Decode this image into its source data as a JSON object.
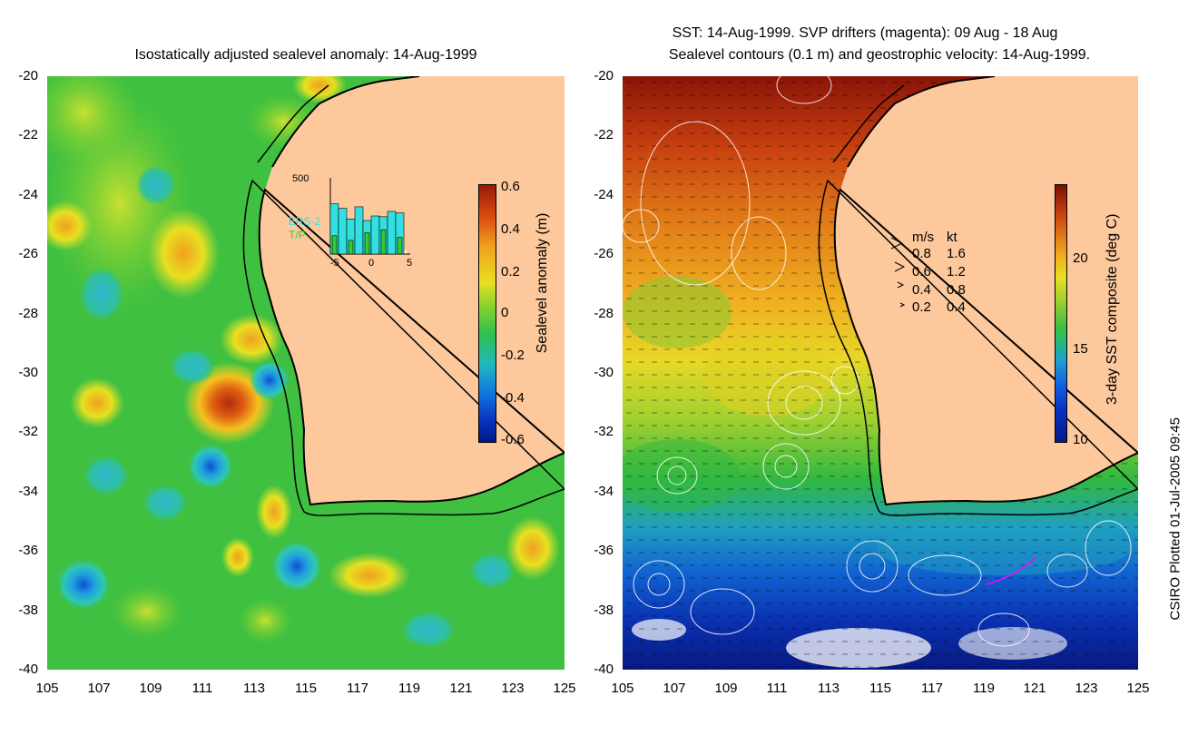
{
  "left_panel": {
    "title": "Isostatically adjusted sealevel anomaly: 14-Aug-1999",
    "lat_ticks": [
      "-20",
      "-22",
      "-24",
      "-26",
      "-28",
      "-30",
      "-32",
      "-34",
      "-36",
      "-38",
      "-40"
    ],
    "lon_ticks": [
      "105",
      "107",
      "109",
      "111",
      "113",
      "115",
      "117",
      "119",
      "121",
      "123",
      "125"
    ],
    "colorbar": {
      "label": "Sealevel anomaly (m)",
      "ticks": [
        "0.6",
        "0.4",
        "0.2",
        "0",
        "-0.2",
        "-0.4",
        "-0.6"
      ],
      "range": [
        -0.6,
        0.6
      ]
    },
    "histogram": {
      "ymax_label": "500",
      "x_ticks": [
        "-5",
        "0",
        "5"
      ],
      "series": [
        {
          "name": "ERS-2",
          "color": "#33e0e0",
          "values": [
            330,
            300,
            230,
            310,
            220,
            250,
            245,
            280,
            270
          ]
        },
        {
          "name": "T/P",
          "color": "#33cc33",
          "values": [
            120,
            0,
            90,
            0,
            140,
            0,
            160,
            0,
            110
          ]
        }
      ]
    }
  },
  "right_panel": {
    "title_line1": "SST: 14-Aug-1999. SVP drifters (magenta): 09 Aug - 18 Aug",
    "title_line2": "Sealevel contours (0.1 m) and geostrophic velocity: 14-Aug-1999.",
    "lat_ticks": [
      "-20",
      "-22",
      "-24",
      "-26",
      "-28",
      "-30",
      "-32",
      "-34",
      "-36",
      "-38",
      "-40"
    ],
    "lon_ticks": [
      "105",
      "107",
      "109",
      "111",
      "113",
      "115",
      "117",
      "119",
      "121",
      "123",
      "125"
    ],
    "colorbar": {
      "label": "3-day SST composite (deg C)",
      "ticks": [
        "20",
        "15",
        "10"
      ],
      "range": [
        10,
        24
      ]
    },
    "velocity_legend": {
      "header_ms": "m/s",
      "header_kt": "kt",
      "rows": [
        {
          "ms": "0.8",
          "kt": "1.6"
        },
        {
          "ms": "0.6",
          "kt": "1.2"
        },
        {
          "ms": "0.4",
          "kt": "0.8"
        },
        {
          "ms": "0.2",
          "kt": "0.4"
        }
      ]
    }
  },
  "credit": "CSIRO Plotted 01-Jul-2005 09:45",
  "colors": {
    "land": "#fcc89c",
    "ocean_green": "#33c033",
    "coastline": "#000000"
  }
}
